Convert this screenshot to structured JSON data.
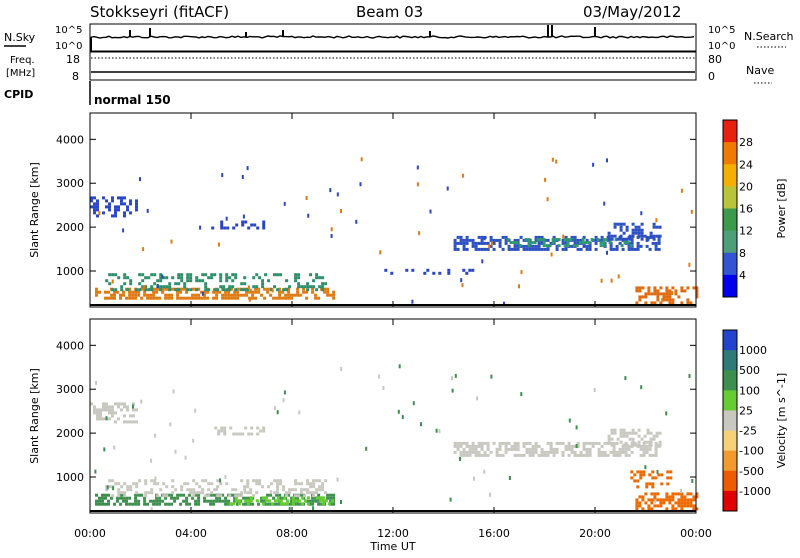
{
  "header": {
    "title": "Stokkseyri (fitACF)",
    "beam": "Beam 03",
    "date": "03/May/2012"
  },
  "status_panels": {
    "nsky_label": "N.Sky",
    "nsky_ticks": [
      "10^5",
      "10^0"
    ],
    "nsearch_label": "N.Search",
    "nsearch_ticks": [
      "10^5",
      "10^0"
    ],
    "freq_label_1": "Freq.",
    "freq_label_2": "[MHz]",
    "freq_ticks": [
      "18",
      "8"
    ],
    "nave_label": "Nave",
    "nave_ticks": [
      "80",
      "0"
    ],
    "cpid_label": "CPID",
    "cpid_value": "normal 150"
  },
  "chart_data": [
    {
      "type": "heatmap",
      "panel": "power",
      "xlabel": "Time UT",
      "ylabel": "Slant Range [km]",
      "x_ticks": [
        "00:00",
        "04:00",
        "08:00",
        "12:00",
        "16:00",
        "20:00",
        "00:00"
      ],
      "y_ticks": [
        1000,
        2000,
        3000,
        4000
      ],
      "xlim": [
        0,
        24
      ],
      "ylim": [
        180,
        4600
      ],
      "colorbar": {
        "label": "Power [dB]",
        "ticks": [
          "28",
          "24",
          "20",
          "16",
          "12",
          "8",
          "4"
        ],
        "range": [
          0,
          30
        ],
        "colors": [
          "#0000ee",
          "#3155d4",
          "#4f9e7a",
          "#3d9a4a",
          "#b8c43a",
          "#f4b000",
          "#f07a00",
          "#e82010"
        ]
      },
      "bands": [
        {
          "t0": 0.0,
          "t1": 1.8,
          "r0": 2280,
          "r1": 2700,
          "color": "#2b47c8",
          "density": 0.45
        },
        {
          "t0": 0.2,
          "t1": 9.6,
          "r0": 350,
          "r1": 620,
          "color": "#e07a12",
          "density": 0.6
        },
        {
          "t0": 0.6,
          "t1": 9.3,
          "r0": 600,
          "r1": 950,
          "color": "#2f8f6a",
          "density": 0.35
        },
        {
          "t0": 4.8,
          "t1": 6.9,
          "r0": 1950,
          "r1": 2150,
          "color": "#2c45c4",
          "density": 0.4
        },
        {
          "t0": 14.4,
          "t1": 22.5,
          "r0": 1500,
          "r1": 1800,
          "color": "#2c4fc2",
          "density": 0.55
        },
        {
          "t0": 16.5,
          "t1": 21.5,
          "r0": 1550,
          "r1": 1750,
          "color": "#2f9870",
          "density": 0.35
        },
        {
          "t0": 20.5,
          "t1": 22.6,
          "r0": 1750,
          "r1": 2100,
          "color": "#2c4fc2",
          "density": 0.45
        },
        {
          "t0": 21.6,
          "t1": 24.0,
          "r0": 300,
          "r1": 650,
          "color": "#e06a10",
          "density": 0.5
        },
        {
          "t0": 11.3,
          "t1": 15.2,
          "r0": 950,
          "r1": 1050,
          "color": "#2c45c4",
          "density": 0.25
        }
      ]
    },
    {
      "type": "heatmap",
      "panel": "velocity",
      "xlabel": "Time UT",
      "ylabel": "Slant Range [km]",
      "x_ticks": [
        "00:00",
        "04:00",
        "08:00",
        "12:00",
        "16:00",
        "20:00",
        "00:00"
      ],
      "y_ticks": [
        1000,
        2000,
        3000,
        4000
      ],
      "xlim": [
        0,
        24
      ],
      "ylim": [
        180,
        4600
      ],
      "colorbar": {
        "label": "Velocity [m s^-1]",
        "ticks": [
          "1000",
          "500",
          "100",
          "25",
          "-25",
          "-100",
          "-500",
          "-1000"
        ],
        "range": [
          -1200,
          1200
        ],
        "colors": [
          "#e00000",
          "#ee5a00",
          "#f09a30",
          "#f5d27a",
          "#c8c8c0",
          "#66cc33",
          "#3e8f4e",
          "#2e7a7a",
          "#2244cc"
        ]
      },
      "bands": [
        {
          "t0": 0.0,
          "t1": 1.8,
          "r0": 2280,
          "r1": 2700,
          "color": "#c8c8c0",
          "density": 0.5
        },
        {
          "t0": 0.2,
          "t1": 9.6,
          "r0": 350,
          "r1": 620,
          "color": "#3e8f4e",
          "density": 0.65
        },
        {
          "t0": 5.5,
          "t1": 9.6,
          "r0": 380,
          "r1": 560,
          "color": "#66cc33",
          "density": 0.5
        },
        {
          "t0": 0.6,
          "t1": 9.3,
          "r0": 600,
          "r1": 950,
          "color": "#c8c8c0",
          "density": 0.35
        },
        {
          "t0": 4.8,
          "t1": 6.9,
          "r0": 1950,
          "r1": 2150,
          "color": "#c8c8c0",
          "density": 0.45
        },
        {
          "t0": 14.4,
          "t1": 22.5,
          "r0": 1500,
          "r1": 1800,
          "color": "#c8c8c0",
          "density": 0.6
        },
        {
          "t0": 20.5,
          "t1": 22.6,
          "r0": 1750,
          "r1": 2100,
          "color": "#c8c8c0",
          "density": 0.5
        },
        {
          "t0": 21.6,
          "t1": 24.0,
          "r0": 300,
          "r1": 650,
          "color": "#ee6a00",
          "density": 0.6
        },
        {
          "t0": 21.4,
          "t1": 23.0,
          "r0": 800,
          "r1": 1150,
          "color": "#ee6a00",
          "density": 0.35
        }
      ]
    }
  ]
}
